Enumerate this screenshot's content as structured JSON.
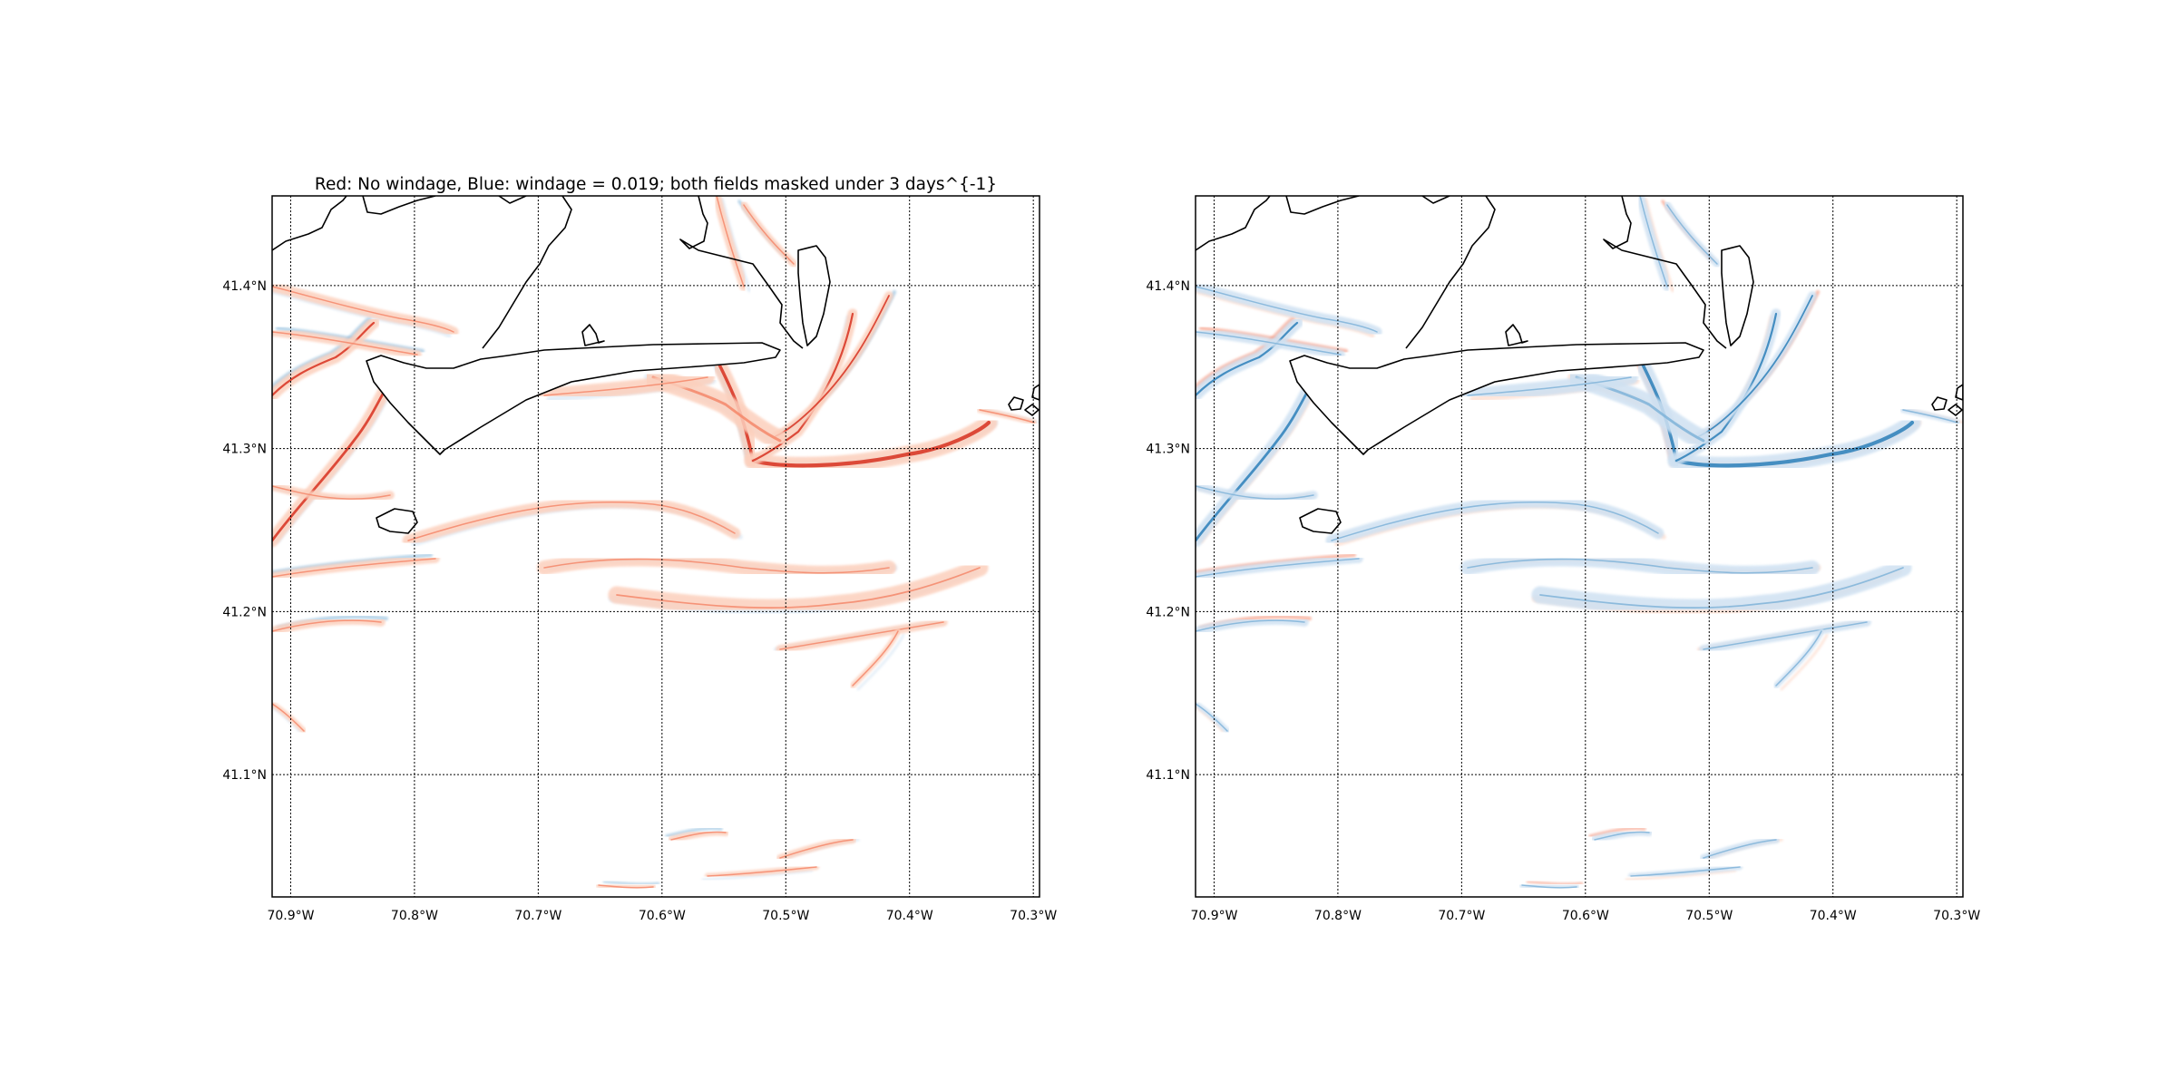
{
  "figure": {
    "background": "#ffffff",
    "title": "Red: No windage, Blue: windage = 0.019; both fields masked under 3 days^{-1}",
    "colors": {
      "red_strong": "#d7301f",
      "red_mid": "#f4876a",
      "red_light": "#fcd0bd",
      "blue_strong": "#2c7fb8",
      "blue_mid": "#7fb3d8",
      "blue_light": "#cfe1f2",
      "coast": "#000000",
      "grid": "#000000"
    }
  },
  "axes": {
    "lon_ticks": [
      "70.9°W",
      "70.8°W",
      "70.7°W",
      "70.6°W",
      "70.5°W",
      "70.4°W",
      "70.3°W"
    ],
    "lat_ticks": [
      "41.4°N",
      "41.3°N",
      "41.2°N",
      "41.1°N"
    ],
    "lon_range": [
      -70.915,
      -70.295
    ],
    "lat_range": [
      41.025,
      41.455
    ],
    "gridlines": true,
    "grid_style": "dotted"
  },
  "panels": [
    {
      "id": "left",
      "title_shown": true,
      "dominant": "red",
      "overlay": "blue"
    },
    {
      "id": "right",
      "title_shown": false,
      "dominant": "blue",
      "overlay": "red"
    }
  ]
}
